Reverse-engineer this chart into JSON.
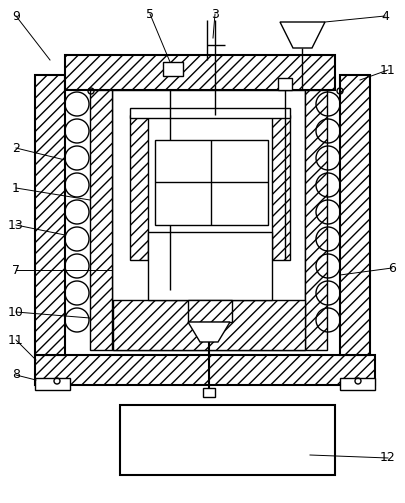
{
  "bg_color": "#ffffff",
  "line_color": "#000000",
  "lw": 1.0,
  "lw2": 1.5
}
